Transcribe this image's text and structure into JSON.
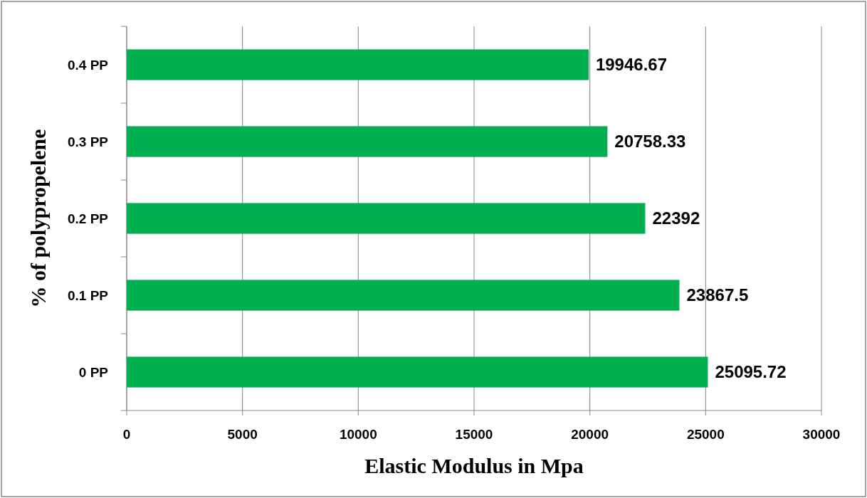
{
  "chart_data": {
    "type": "bar",
    "orientation": "horizontal",
    "xlabel": "Elastic Modulus in Mpa",
    "ylabel": "% of polypropelene",
    "categories": [
      "0.4 PP",
      "0.3 PP",
      "0.2 PP",
      "0.1 PP",
      "0 PP"
    ],
    "values": [
      19946.67,
      20758.33,
      22392,
      23867.5,
      25095.72
    ],
    "color": "#00b050",
    "xlim": [
      0,
      30000
    ],
    "xticks": [
      0,
      5000,
      10000,
      15000,
      20000,
      25000,
      30000
    ],
    "grid": "x",
    "data_labels": true
  }
}
